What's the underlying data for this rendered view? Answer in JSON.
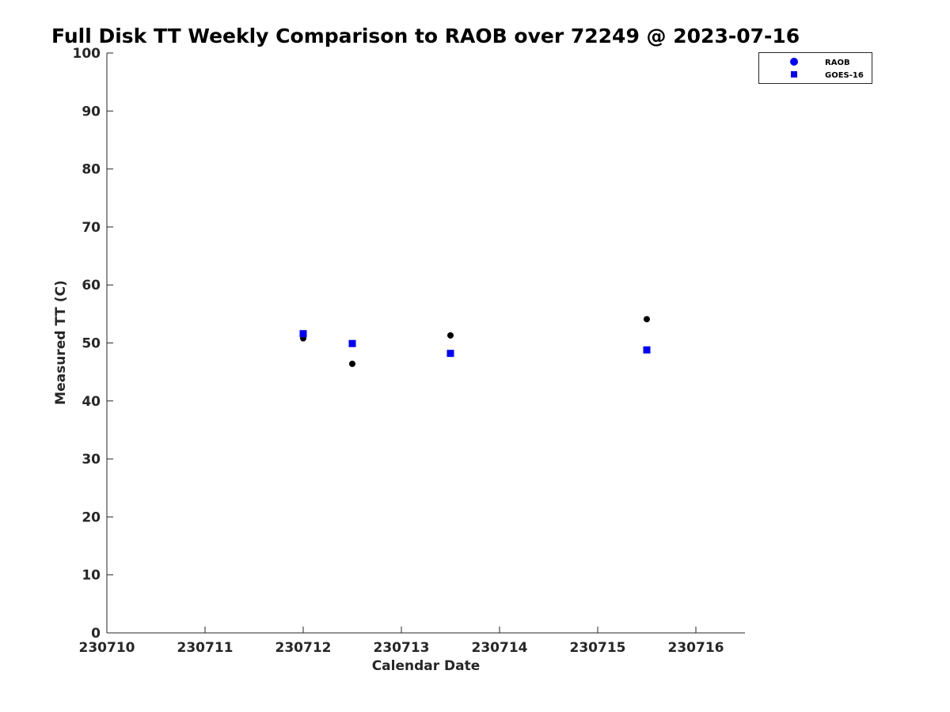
{
  "chart_data": {
    "type": "scatter",
    "title": "Full Disk TT Weekly Comparison to RAOB over 72249 @ 2023-07-16",
    "xlabel": "Calendar Date",
    "ylabel": "Measured TT (C)",
    "xlim": [
      230710,
      230716.5
    ],
    "ylim": [
      0,
      100
    ],
    "xticks": [
      230710,
      230711,
      230712,
      230713,
      230714,
      230715,
      230716
    ],
    "xtick_labels": [
      "230710",
      "230711",
      "230712",
      "230713",
      "230714",
      "230715",
      "230716"
    ],
    "yticks": [
      0,
      10,
      20,
      30,
      40,
      50,
      60,
      70,
      80,
      90,
      100
    ],
    "ytick_labels": [
      "0",
      "10",
      "20",
      "30",
      "40",
      "50",
      "60",
      "70",
      "80",
      "90",
      "100"
    ],
    "grid": false,
    "legend_position": "top-right",
    "legend": [
      {
        "label": "RAOB",
        "marker": "circle",
        "color": "#0000ff"
      },
      {
        "label": "GOES-16",
        "marker": "square",
        "color": "#0000ff"
      }
    ],
    "series": [
      {
        "name": "RAOB",
        "marker": "circle",
        "color": "#000000",
        "x": [
          230712.0,
          230712.5,
          230713.5,
          230715.5
        ],
        "y": [
          50.8,
          46.4,
          51.3,
          54.1
        ]
      },
      {
        "name": "GOES-16",
        "marker": "square",
        "color": "#0000ff",
        "x": [
          230712.0,
          230712.5,
          230713.5,
          230715.5
        ],
        "y": [
          51.6,
          49.9,
          48.2,
          48.8
        ]
      }
    ]
  }
}
